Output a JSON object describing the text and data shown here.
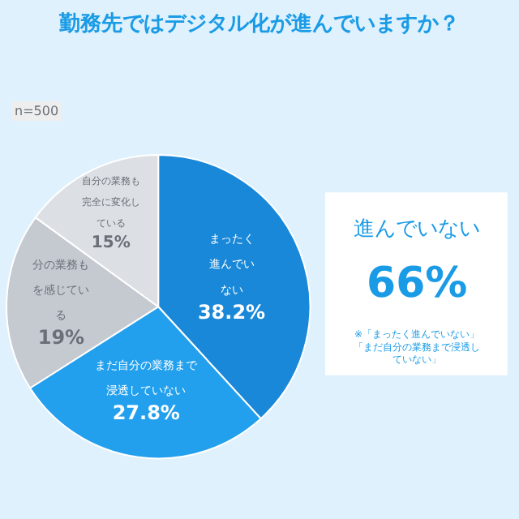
{
  "chart_data": {
    "type": "pie",
    "title": "勤務先ではデジタル化が進んでいますか？",
    "categories": [
      "まったく進んでいない",
      "まだ自分の業務まで浸透していない",
      "分の業務もを感じている",
      "自分の業務も完全に変化している"
    ],
    "values": [
      38.2,
      27.8,
      19,
      15
    ],
    "value_labels": [
      "38.2%",
      "27.8%",
      "19%",
      "15%"
    ],
    "colors": [
      "#1a88d8",
      "#22a0ee",
      "#c5c9d0",
      "#dcdfe4"
    ],
    "legend": false,
    "annotations": [
      "n=500",
      "進んでいない",
      "66%",
      "※「まったく進んでいない」「まだ自分の業務まで浸透していない」"
    ]
  }
}
